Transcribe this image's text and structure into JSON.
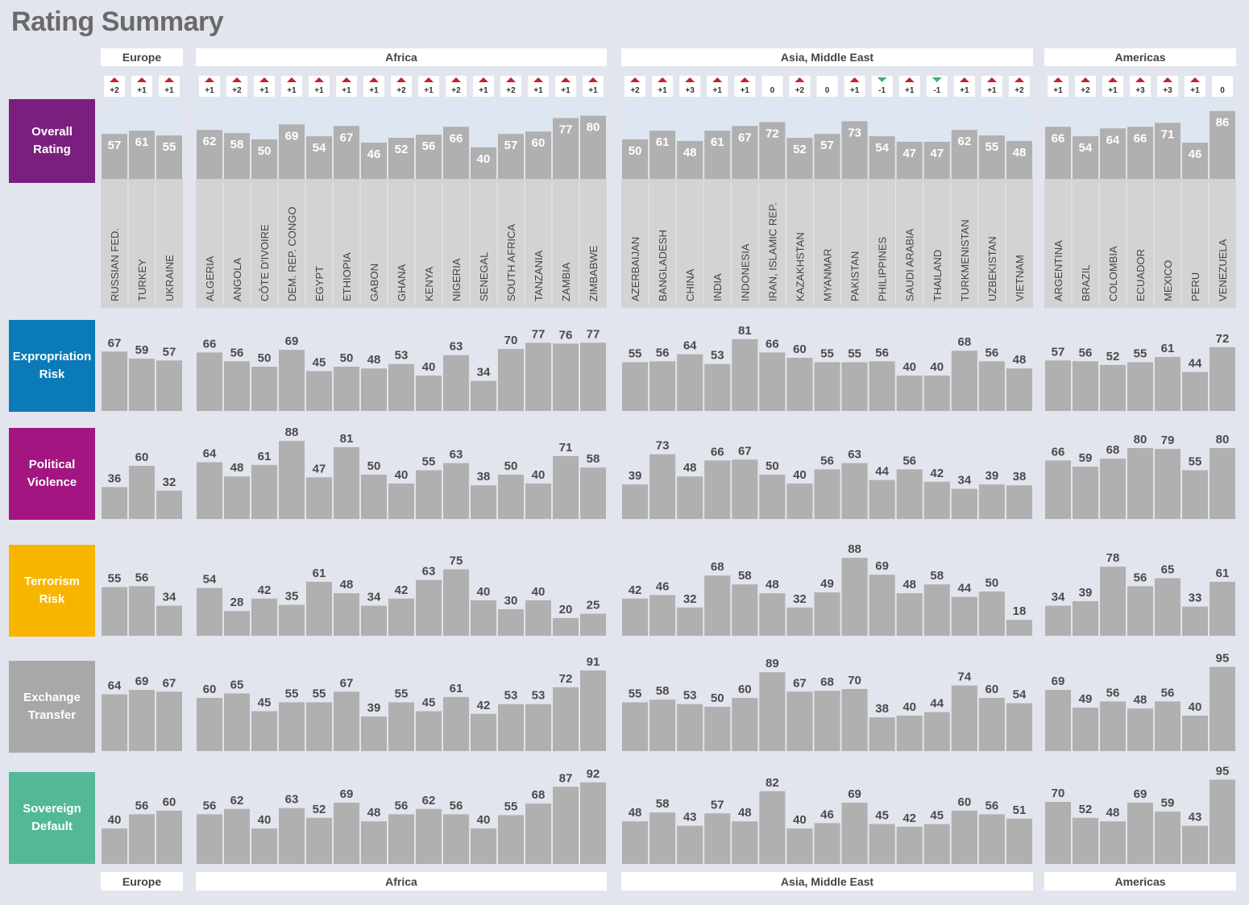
{
  "title": "Rating Summary",
  "colors": {
    "bar": "#b0b0b0",
    "bar_label": "#4a4a4a",
    "overall_bg": "#dde6f1",
    "country_bg": "#d3d3d3",
    "header_bg": "#ffffff",
    "up_arrow": "#c0222e",
    "down_arrow": "#3fb07c"
  },
  "regions": [
    {
      "name": "Europe",
      "countries": [
        "RUSSIAN FED.",
        "TURKEY",
        "UKRAINE"
      ]
    },
    {
      "name": "Africa",
      "countries": [
        "ALGERIA",
        "ANGOLA",
        "CÔTE D'IVOIRE",
        "DEM. REP. CONGO",
        "EGYPT",
        "ETHIOPIA",
        "GABON",
        "GHANA",
        "KENYA",
        "NIGERIA",
        "SENEGAL",
        "SOUTH AFRICA",
        "TANZANIA",
        "ZAMBIA",
        "ZIMBABWE"
      ]
    },
    {
      "name": "Asia, Middle East",
      "countries": [
        "AZERBAIJAN",
        "BANGLADESH",
        "CHINA",
        "INDIA",
        "INDONESIA",
        "IRAN, ISLAMIC REP.",
        "KAZAKHSTAN",
        "MYANMAR",
        "PAKISTAN",
        "PHILIPPINES",
        "SAUDI ARABIA",
        "THAILAND",
        "TURKMENISTAN",
        "UZBEKISTAN",
        "VIETNAM"
      ]
    },
    {
      "name": "Americas",
      "countries": [
        "ARGENTINA",
        "BRAZIL",
        "COLOMBIA",
        "ECUADOR",
        "MEXICO",
        "PERU",
        "VENEZUELA"
      ]
    }
  ],
  "changes": [
    [
      "+2",
      "+1",
      "+1"
    ],
    [
      "+1",
      "+2",
      "+1",
      "+1",
      "+1",
      "+1",
      "+1",
      "+2",
      "+1",
      "+2",
      "+1",
      "+2",
      "+1",
      "+1",
      "+1"
    ],
    [
      "+2",
      "+1",
      "+3",
      "+1",
      "+1",
      "0",
      "+2",
      "0",
      "+1",
      "-1",
      "+1",
      "-1",
      "+1",
      "+1",
      "+2"
    ],
    [
      "+1",
      "+2",
      "+1",
      "+3",
      "+3",
      "+1",
      "0"
    ]
  ],
  "rows": [
    {
      "label": [
        "Overall",
        "Rating"
      ],
      "color": "#7b1f7e"
    },
    {
      "label": [
        "Expropriation",
        "Risk"
      ],
      "color": "#0a7ab8"
    },
    {
      "label": [
        "Political",
        "Violence"
      ],
      "color": "#a31581"
    },
    {
      "label": [
        "Terrorism",
        "Risk"
      ],
      "color": "#f7b500"
    },
    {
      "label": [
        "Exchange",
        "Transfer"
      ],
      "color": "#a8a8a8"
    },
    {
      "label": [
        "Sovereign",
        "Default"
      ],
      "color": "#52b898"
    }
  ],
  "chart_data": {
    "type": "bar",
    "series": [
      {
        "name": "Overall Rating",
        "values": [
          [
            57,
            61,
            55
          ],
          [
            62,
            58,
            50,
            69,
            54,
            67,
            46,
            52,
            56,
            66,
            40,
            57,
            60,
            77,
            80
          ],
          [
            50,
            61,
            48,
            61,
            67,
            72,
            52,
            57,
            73,
            54,
            47,
            47,
            62,
            55,
            48
          ],
          [
            66,
            54,
            64,
            66,
            71,
            46,
            86
          ]
        ]
      },
      {
        "name": "Expropriation Risk",
        "values": [
          [
            67,
            59,
            57
          ],
          [
            66,
            56,
            50,
            69,
            45,
            50,
            48,
            53,
            40,
            63,
            34,
            70,
            77,
            76,
            77
          ],
          [
            55,
            56,
            64,
            53,
            81,
            66,
            60,
            55,
            55,
            56,
            40,
            40,
            68,
            56,
            48
          ],
          [
            57,
            56,
            52,
            55,
            61,
            44,
            72
          ]
        ]
      },
      {
        "name": "Political Violence",
        "values": [
          [
            36,
            60,
            32
          ],
          [
            64,
            48,
            61,
            88,
            47,
            81,
            50,
            40,
            55,
            63,
            38,
            50,
            40,
            71,
            58
          ],
          [
            39,
            73,
            48,
            66,
            67,
            50,
            40,
            56,
            63,
            44,
            56,
            42,
            34,
            39,
            38
          ],
          [
            66,
            59,
            68,
            80,
            79,
            55,
            80
          ]
        ]
      },
      {
        "name": "Terrorism Risk",
        "values": [
          [
            55,
            56,
            34
          ],
          [
            54,
            28,
            42,
            35,
            61,
            48,
            34,
            42,
            63,
            75,
            40,
            30,
            40,
            20,
            25
          ],
          [
            42,
            46,
            32,
            68,
            58,
            48,
            32,
            49,
            88,
            69,
            48,
            58,
            44,
            50,
            18
          ],
          [
            34,
            39,
            78,
            56,
            65,
            33,
            61
          ]
        ]
      },
      {
        "name": "Exchange Transfer",
        "values": [
          [
            64,
            69,
            67
          ],
          [
            60,
            65,
            45,
            55,
            55,
            67,
            39,
            55,
            45,
            61,
            42,
            53,
            53,
            72,
            91
          ],
          [
            55,
            58,
            53,
            50,
            60,
            89,
            67,
            68,
            70,
            38,
            40,
            44,
            74,
            60,
            54
          ],
          [
            69,
            49,
            56,
            48,
            56,
            40,
            95
          ]
        ]
      },
      {
        "name": "Sovereign Default",
        "values": [
          [
            40,
            56,
            60
          ],
          [
            56,
            62,
            40,
            63,
            52,
            69,
            48,
            56,
            62,
            56,
            40,
            55,
            68,
            87,
            92
          ],
          [
            48,
            58,
            43,
            57,
            48,
            82,
            40,
            46,
            69,
            45,
            42,
            45,
            60,
            56,
            51
          ],
          [
            70,
            52,
            48,
            69,
            59,
            43,
            95
          ]
        ]
      }
    ]
  }
}
